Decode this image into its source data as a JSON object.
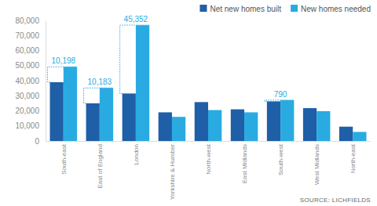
{
  "chart_data": {
    "type": "bar",
    "categories": [
      "South-east",
      "East of England",
      "London",
      "Yorkshire & Humber",
      "North-west",
      "East Midlands",
      "South-west",
      "West Midlands",
      "North-east"
    ],
    "series": [
      {
        "name": "Net new homes built",
        "color": "#1f5fa8",
        "values": [
          39000,
          25000,
          31500,
          19000,
          25800,
          21000,
          26300,
          21800,
          9500
        ]
      },
      {
        "name": "New homes needed",
        "color": "#29abe2",
        "values": [
          49200,
          35200,
          76800,
          16000,
          20500,
          19000,
          27100,
          19800,
          6000
        ]
      }
    ],
    "annotations": [
      {
        "text": "10,198",
        "value": 10198,
        "category": "South-east"
      },
      {
        "text": "10,183",
        "value": 10183,
        "category": "East of England"
      },
      {
        "text": "45,352",
        "value": 45352,
        "category": "London"
      },
      {
        "text": "790",
        "value": 790,
        "category": "South-west"
      }
    ],
    "source": "SOURCE: LICHFIELDS",
    "ylim": [
      0,
      80000
    ],
    "yticks": [
      0,
      {
        "value": 10000,
        "label": "10,000"
      },
      {
        "value": 20000,
        "label": "20,000"
      },
      {
        "value": 30000,
        "label": "30,000"
      },
      {
        "value": 40000,
        "label": "40,000"
      },
      {
        "value": 50000,
        "label": "50,000"
      },
      {
        "value": 60000,
        "label": "60,000"
      },
      {
        "value": 70000,
        "label": "70,000"
      },
      {
        "value": 80000,
        "label": "80,000"
      }
    ],
    "grid": false,
    "legend": "top-right"
  }
}
